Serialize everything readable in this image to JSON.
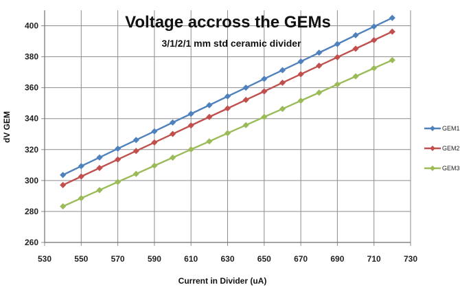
{
  "chart_data": {
    "type": "line",
    "title": "Voltage accross the GEMs",
    "subtitle": "3/1/2/1 mm std ceramic divider",
    "xlabel": "Current in Divider (uA)",
    "ylabel": "dV GEM",
    "xlim": [
      530,
      730
    ],
    "ylim": [
      260,
      410
    ],
    "x_ticks": [
      530,
      550,
      570,
      590,
      610,
      630,
      650,
      670,
      690,
      710,
      730
    ],
    "y_ticks": [
      260,
      280,
      300,
      320,
      340,
      360,
      380,
      400
    ],
    "grid": true,
    "legend_position": "right",
    "x": [
      540,
      550,
      560,
      570,
      580,
      590,
      600,
      610,
      620,
      630,
      640,
      650,
      660,
      670,
      680,
      690,
      700,
      710,
      720
    ],
    "series": [
      {
        "name": "GEM1",
        "color": "#4f81bd",
        "marker": "diamond",
        "values": [
          303.6,
          309.3,
          314.9,
          320.6,
          326.2,
          331.8,
          337.5,
          343.1,
          348.7,
          354.4,
          360.0,
          365.7,
          371.3,
          376.9,
          382.6,
          388.2,
          393.9,
          399.5,
          405.1
        ]
      },
      {
        "name": "GEM2",
        "color": "#c0504d",
        "marker": "diamond",
        "values": [
          297.1,
          302.6,
          308.1,
          313.6,
          319.1,
          324.6,
          330.1,
          335.6,
          341.1,
          346.6,
          352.1,
          357.6,
          363.2,
          368.7,
          374.2,
          379.7,
          385.2,
          390.7,
          396.2
        ]
      },
      {
        "name": "GEM3",
        "color": "#9bbb59",
        "marker": "diamond",
        "values": [
          283.3,
          288.6,
          293.8,
          299.1,
          304.3,
          309.6,
          314.8,
          320.1,
          325.3,
          330.6,
          335.8,
          341.1,
          346.3,
          351.6,
          356.8,
          362.1,
          367.3,
          372.6,
          377.8
        ]
      }
    ]
  }
}
